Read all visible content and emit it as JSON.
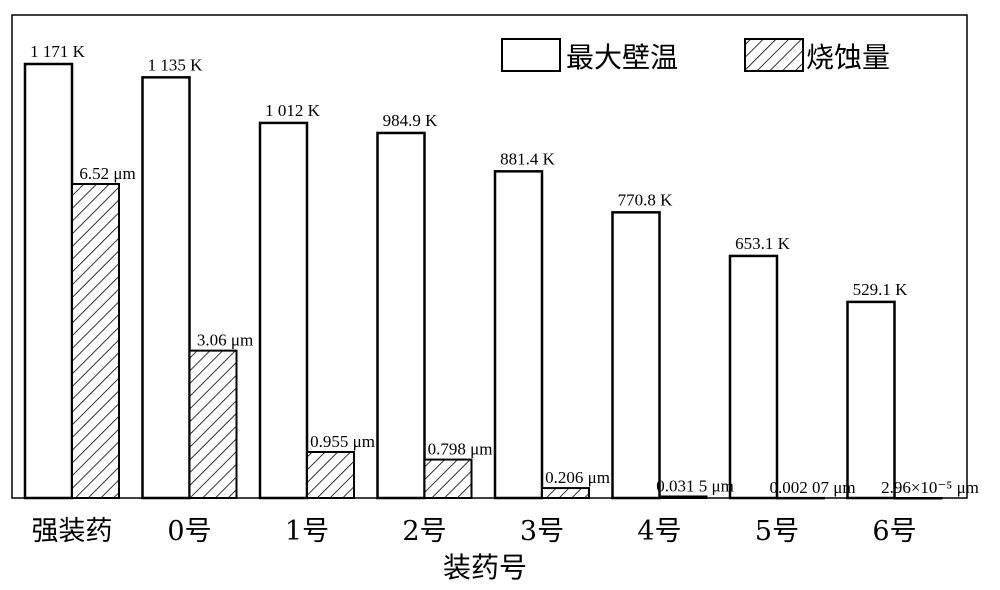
{
  "chart_data": {
    "type": "bar",
    "xlabel": "装药号",
    "categories": [
      "强装药",
      "0号",
      "1号",
      "2号",
      "3号",
      "4号",
      "5号",
      "6号"
    ],
    "series": [
      {
        "name": "最大壁温",
        "unit": "K",
        "values": [
          1171,
          1135,
          1012,
          984.9,
          881.4,
          770.8,
          653.1,
          529.1
        ],
        "labels": [
          "1 171 K",
          "1 135 K",
          "1 012 K",
          "984.9 K",
          "881.4 K",
          "770.8 K",
          "653.1 K",
          "529.1 K"
        ],
        "fill": "open"
      },
      {
        "name": "烧蚀量",
        "unit": "μm",
        "values": [
          6.52,
          3.06,
          0.955,
          0.798,
          0.206,
          0.0315,
          0.00207,
          2.96e-05
        ],
        "labels": [
          "6.52 μm",
          "3.06 μm",
          "0.955 μm",
          "0.798 μm",
          "0.206 μm",
          "0.031 5 μm",
          "0.002 07 μm",
          "2.96×10⁻⁵ μm"
        ],
        "fill": "hatched"
      }
    ],
    "legend_position": "top-right",
    "grid": false,
    "colors": {
      "stroke": "#000000",
      "background": "#ffffff"
    }
  }
}
